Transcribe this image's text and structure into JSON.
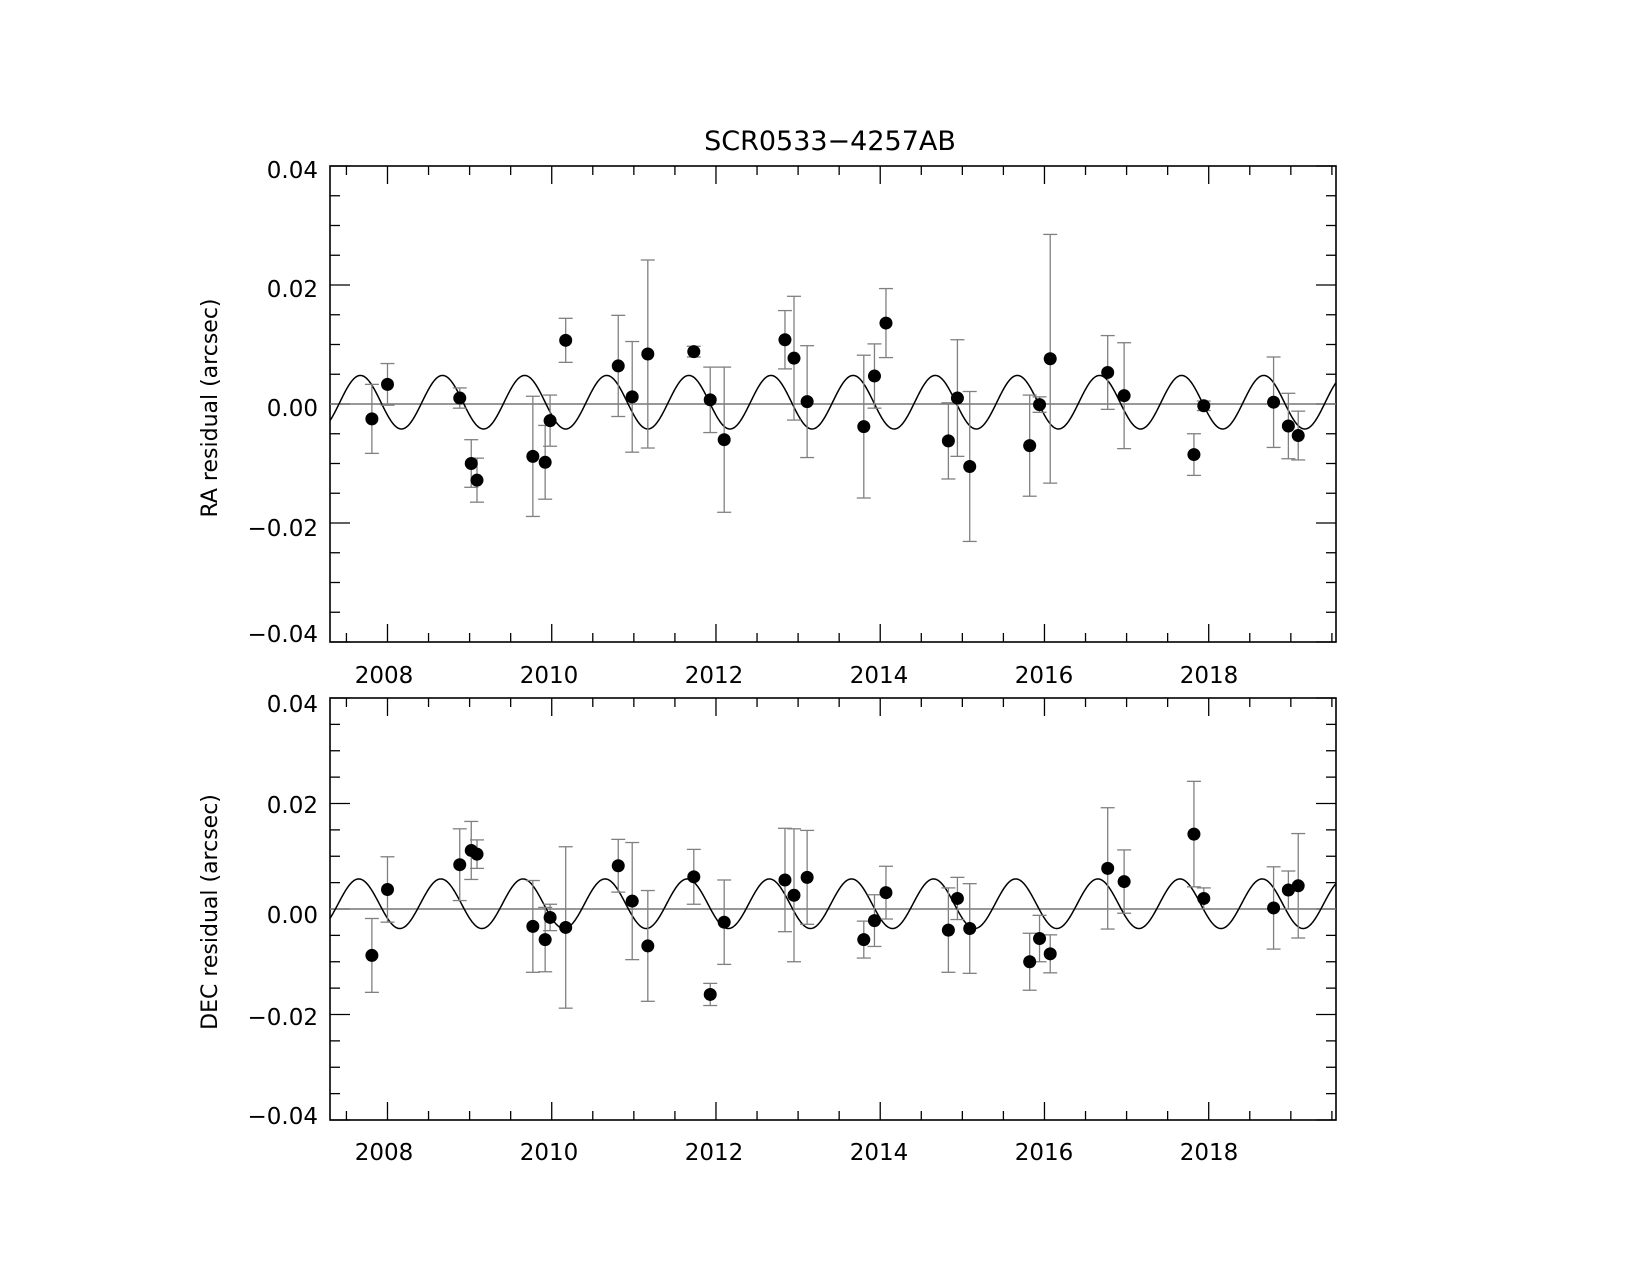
{
  "chart_data": [
    {
      "type": "scatter",
      "title": "SCR0533−4257AB",
      "xlabel": "",
      "ylabel": "RA residual (arcsec)",
      "xlim": [
        2007.3,
        2019.55
      ],
      "ylim": [
        -0.04,
        0.04
      ],
      "xticks": [
        "2008",
        "2010",
        "2012",
        "2014",
        "2016",
        "2018"
      ],
      "yticks": [
        "0.04",
        "0.02",
        "0.00",
        "−0.02",
        "−0.04"
      ],
      "zero_line": true,
      "model": {
        "amplitude": 0.0045,
        "offset": 0.0003,
        "period_yr": 1.0,
        "phase_year": 2007.42
      },
      "points": [
        {
          "x": 2007.81,
          "y": -0.0025,
          "err": 0.0058
        },
        {
          "x": 2008.0,
          "y": 0.0033,
          "err": 0.0035
        },
        {
          "x": 2008.88,
          "y": 0.001,
          "err": 0.0017
        },
        {
          "x": 2009.02,
          "y": -0.01,
          "err": 0.004
        },
        {
          "x": 2009.09,
          "y": -0.0128,
          "err": 0.0037
        },
        {
          "x": 2009.77,
          "y": -0.0088,
          "err": 0.0101
        },
        {
          "x": 2009.92,
          "y": -0.0098,
          "err": 0.0062
        },
        {
          "x": 2009.98,
          "y": -0.0028,
          "err": 0.0043
        },
        {
          "x": 2010.17,
          "y": 0.0107,
          "err": 0.0037
        },
        {
          "x": 2010.81,
          "y": 0.0064,
          "err": 0.0085
        },
        {
          "x": 2010.98,
          "y": 0.0012,
          "err": 0.0093
        },
        {
          "x": 2011.17,
          "y": 0.0084,
          "err": 0.0158
        },
        {
          "x": 2011.73,
          "y": 0.0088,
          "err": 0.0009
        },
        {
          "x": 2011.93,
          "y": 0.0007,
          "err": 0.0055
        },
        {
          "x": 2012.1,
          "y": -0.006,
          "err": 0.0122
        },
        {
          "x": 2012.84,
          "y": 0.0108,
          "err": 0.0049
        },
        {
          "x": 2012.95,
          "y": 0.0077,
          "err": 0.0104
        },
        {
          "x": 2013.11,
          "y": 0.0004,
          "err": 0.0094
        },
        {
          "x": 2013.8,
          "y": -0.0038,
          "err": 0.012
        },
        {
          "x": 2013.93,
          "y": 0.0047,
          "err": 0.0054
        },
        {
          "x": 2014.07,
          "y": 0.0136,
          "err": 0.0058
        },
        {
          "x": 2014.83,
          "y": -0.0062,
          "err": 0.0064
        },
        {
          "x": 2014.94,
          "y": 0.001,
          "err": 0.0098
        },
        {
          "x": 2015.09,
          "y": -0.0105,
          "err": 0.0126
        },
        {
          "x": 2015.82,
          "y": -0.007,
          "err": 0.0085
        },
        {
          "x": 2015.94,
          "y": -0.0001,
          "err": 0.0013
        },
        {
          "x": 2016.07,
          "y": 0.0076,
          "err": 0.0209
        },
        {
          "x": 2016.77,
          "y": 0.0053,
          "err": 0.0062
        },
        {
          "x": 2016.97,
          "y": 0.0014,
          "err": 0.0089
        },
        {
          "x": 2017.82,
          "y": -0.0085,
          "err": 0.0035
        },
        {
          "x": 2017.94,
          "y": -0.0003,
          "err": 0.0008
        },
        {
          "x": 2018.79,
          "y": 0.0003,
          "err": 0.0076
        },
        {
          "x": 2018.97,
          "y": -0.0037,
          "err": 0.0055
        },
        {
          "x": 2019.09,
          "y": -0.0053,
          "err": 0.0041
        }
      ]
    },
    {
      "type": "scatter",
      "title": "",
      "xlabel": "",
      "ylabel": "DEC residual (arcsec)",
      "xlim": [
        2007.3,
        2019.55
      ],
      "ylim": [
        -0.04,
        0.04
      ],
      "xticks": [
        "2008",
        "2010",
        "2012",
        "2014",
        "2016",
        "2018"
      ],
      "yticks": [
        "0.04",
        "0.02",
        "0.00",
        "−0.02",
        "−0.04"
      ],
      "zero_line": true,
      "model": {
        "amplitude": 0.0047,
        "offset": 0.001,
        "period_yr": 1.0,
        "phase_year": 2007.4
      },
      "points": [
        {
          "x": 2007.81,
          "y": -0.0088,
          "err": 0.007
        },
        {
          "x": 2008.0,
          "y": 0.0037,
          "err": 0.0062
        },
        {
          "x": 2008.88,
          "y": 0.0084,
          "err": 0.0068
        },
        {
          "x": 2009.02,
          "y": 0.0111,
          "err": 0.0055
        },
        {
          "x": 2009.09,
          "y": 0.0104,
          "err": 0.0027
        },
        {
          "x": 2009.77,
          "y": -0.0033,
          "err": 0.0087
        },
        {
          "x": 2009.92,
          "y": -0.0058,
          "err": 0.0061
        },
        {
          "x": 2009.98,
          "y": -0.0016,
          "err": 0.0025
        },
        {
          "x": 2010.17,
          "y": -0.0035,
          "err": 0.0153
        },
        {
          "x": 2010.81,
          "y": 0.0082,
          "err": 0.005
        },
        {
          "x": 2010.98,
          "y": 0.0015,
          "err": 0.0111
        },
        {
          "x": 2011.17,
          "y": -0.007,
          "err": 0.0105
        },
        {
          "x": 2011.73,
          "y": 0.0061,
          "err": 0.0052
        },
        {
          "x": 2011.93,
          "y": -0.0162,
          "err": 0.0021
        },
        {
          "x": 2012.1,
          "y": -0.0025,
          "err": 0.008
        },
        {
          "x": 2012.84,
          "y": 0.0055,
          "err": 0.0098
        },
        {
          "x": 2012.95,
          "y": 0.0026,
          "err": 0.0126
        },
        {
          "x": 2013.11,
          "y": 0.006,
          "err": 0.0089
        },
        {
          "x": 2013.8,
          "y": -0.0058,
          "err": 0.0035
        },
        {
          "x": 2013.93,
          "y": -0.0022,
          "err": 0.0049
        },
        {
          "x": 2014.07,
          "y": 0.0031,
          "err": 0.005
        },
        {
          "x": 2014.83,
          "y": -0.004,
          "err": 0.008
        },
        {
          "x": 2014.94,
          "y": 0.002,
          "err": 0.004
        },
        {
          "x": 2015.09,
          "y": -0.0037,
          "err": 0.0085
        },
        {
          "x": 2015.82,
          "y": -0.01,
          "err": 0.0054
        },
        {
          "x": 2015.94,
          "y": -0.0056,
          "err": 0.0044
        },
        {
          "x": 2016.07,
          "y": -0.0085,
          "err": 0.0036
        },
        {
          "x": 2016.77,
          "y": 0.0077,
          "err": 0.0115
        },
        {
          "x": 2016.97,
          "y": 0.0052,
          "err": 0.006
        },
        {
          "x": 2017.82,
          "y": 0.0142,
          "err": 0.01
        },
        {
          "x": 2017.94,
          "y": 0.002,
          "err": 0.002
        },
        {
          "x": 2018.79,
          "y": 0.0002,
          "err": 0.0078
        },
        {
          "x": 2018.97,
          "y": 0.0036,
          "err": 0.0036
        },
        {
          "x": 2019.09,
          "y": 0.0044,
          "err": 0.0099
        }
      ]
    }
  ]
}
